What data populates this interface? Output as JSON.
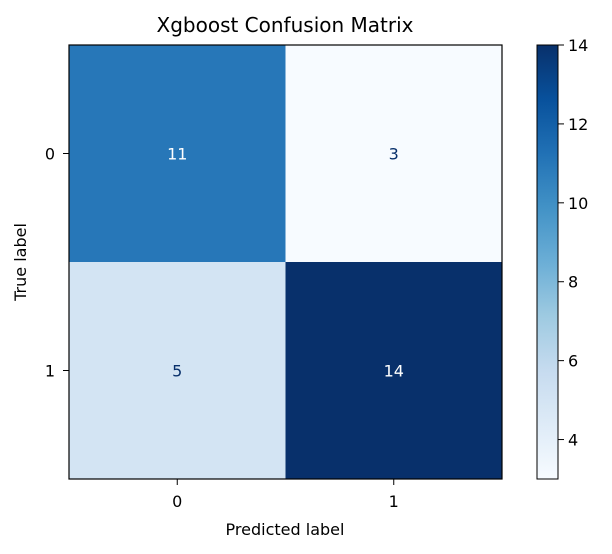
{
  "chart_data": {
    "type": "heatmap",
    "title": "Xgboost Confusion Matrix",
    "xlabel": "Predicted label",
    "ylabel": "True label",
    "x_categories": [
      "0",
      "1"
    ],
    "y_categories": [
      "0",
      "1"
    ],
    "values": [
      [
        11,
        3
      ],
      [
        5,
        14
      ]
    ],
    "colormap": "Blues",
    "colorbar": {
      "range": [
        3,
        14
      ],
      "ticks": [
        4,
        6,
        8,
        10,
        12,
        14
      ]
    },
    "grid": false,
    "legend": "none"
  },
  "colors": {
    "text_on_dark": "#ffffff",
    "text_on_light": "#08306b",
    "axis": "#000000"
  }
}
